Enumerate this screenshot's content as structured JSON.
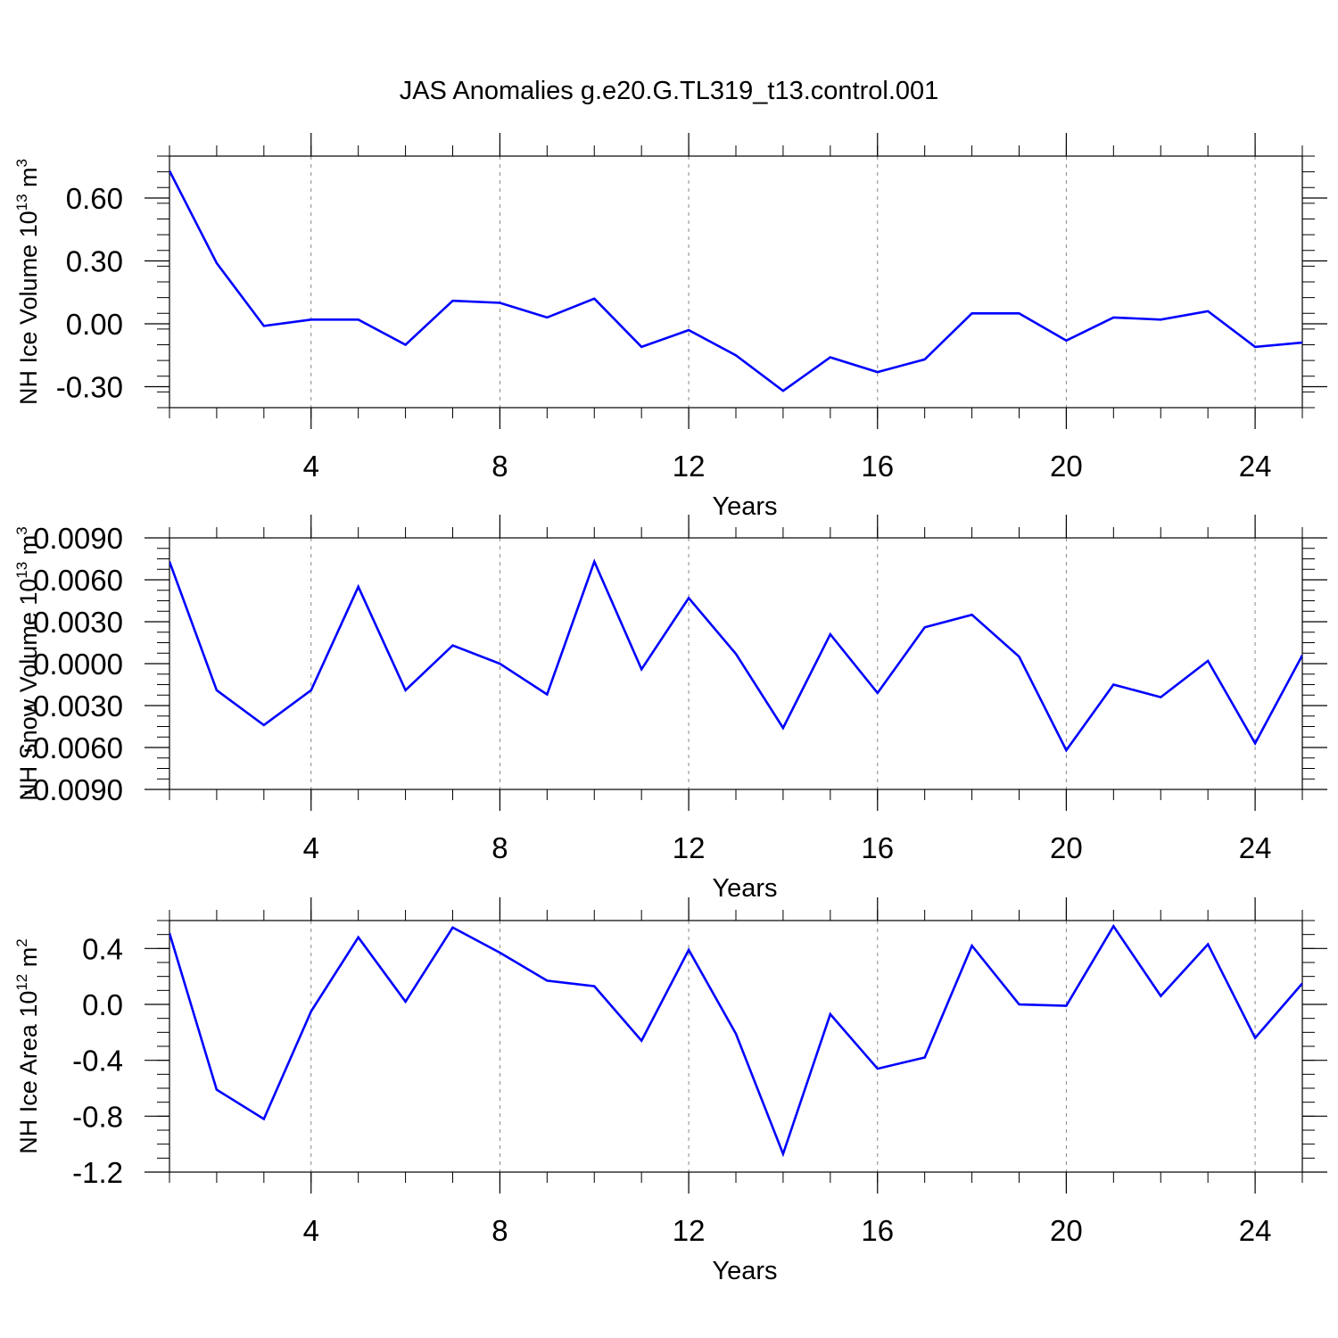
{
  "chart_data": [
    {
      "type": "line",
      "title": "JAS Anomalies g.e20.G.TL319_t13.control.001",
      "xlabel": "Years",
      "ylabel": {
        "main": "NH Ice Volume 10",
        "exp": "13",
        "unit": " m",
        "unit_exp": "3"
      },
      "xlim": [
        1,
        25
      ],
      "ylim": [
        -0.4,
        0.8
      ],
      "xticks": [
        4,
        8,
        12,
        16,
        20,
        24
      ],
      "yticks": [
        -0.3,
        0.0,
        0.3,
        0.6
      ],
      "ytick_labels": [
        "-0.30",
        "0.00",
        "0.30",
        "0.60"
      ],
      "series": [
        {
          "name": "NH Ice Volume",
          "color": "#0000ff",
          "x": [
            1,
            2,
            3,
            4,
            5,
            6,
            7,
            8,
            9,
            10,
            11,
            12,
            13,
            14,
            15,
            16,
            17,
            18,
            19,
            20,
            21,
            22,
            23,
            24,
            25
          ],
          "values": [
            0.73,
            0.29,
            -0.01,
            0.02,
            0.02,
            -0.1,
            0.11,
            0.1,
            0.03,
            0.12,
            -0.11,
            -0.03,
            -0.15,
            -0.32,
            -0.16,
            -0.23,
            -0.17,
            0.05,
            0.05,
            -0.08,
            0.03,
            0.02,
            0.06,
            -0.11,
            -0.09
          ]
        }
      ]
    },
    {
      "type": "line",
      "xlabel": "Years",
      "ylabel": {
        "main": "NH Snow Volume 10",
        "exp": "13",
        "unit": " m",
        "unit_exp": "3"
      },
      "xlim": [
        1,
        25
      ],
      "ylim": [
        -0.009,
        0.009
      ],
      "xticks": [
        4,
        8,
        12,
        16,
        20,
        24
      ],
      "yticks": [
        -0.009,
        -0.006,
        -0.003,
        0.0,
        0.003,
        0.006,
        0.009
      ],
      "ytick_labels": [
        "-0.0090",
        "-0.0060",
        "-0.0030",
        "0.0000",
        "0.0030",
        "0.0060",
        "0.0090"
      ],
      "series": [
        {
          "name": "NH Snow Volume",
          "color": "#0000ff",
          "x": [
            1,
            2,
            3,
            4,
            5,
            6,
            7,
            8,
            9,
            10,
            11,
            12,
            13,
            14,
            15,
            16,
            17,
            18,
            19,
            20,
            21,
            22,
            23,
            24,
            25
          ],
          "values": [
            0.0073,
            -0.0019,
            -0.0044,
            -0.0019,
            0.0055,
            -0.0019,
            0.0013,
            0.0,
            -0.0022,
            0.0073,
            -0.0004,
            0.0047,
            0.0007,
            -0.0046,
            0.0021,
            -0.0021,
            0.0026,
            0.0035,
            0.0005,
            -0.0062,
            -0.0015,
            -0.0024,
            0.0002,
            -0.0057,
            0.0006
          ]
        }
      ]
    },
    {
      "type": "line",
      "xlabel": "Years",
      "ylabel": {
        "main": "NH Ice Area 10",
        "exp": "12",
        "unit": " m",
        "unit_exp": "2"
      },
      "xlim": [
        1,
        25
      ],
      "ylim": [
        -1.2,
        0.6
      ],
      "xticks": [
        4,
        8,
        12,
        16,
        20,
        24
      ],
      "yticks": [
        -1.2,
        -0.8,
        -0.4,
        0.0,
        0.4
      ],
      "ytick_labels": [
        "-1.2",
        "-0.8",
        "-0.4",
        "0.0",
        "0.4"
      ],
      "series": [
        {
          "name": "NH Ice Area",
          "color": "#0000ff",
          "x": [
            1,
            2,
            3,
            4,
            5,
            6,
            7,
            8,
            9,
            10,
            11,
            12,
            13,
            14,
            15,
            16,
            17,
            18,
            19,
            20,
            21,
            22,
            23,
            24,
            25
          ],
          "values": [
            0.51,
            -0.61,
            -0.82,
            -0.05,
            0.48,
            0.02,
            0.55,
            0.37,
            0.17,
            0.13,
            -0.26,
            0.39,
            -0.21,
            -1.07,
            -0.07,
            -0.46,
            -0.38,
            0.42,
            0.0,
            -0.01,
            0.56,
            0.06,
            0.43,
            -0.24,
            0.15
          ]
        }
      ]
    }
  ]
}
